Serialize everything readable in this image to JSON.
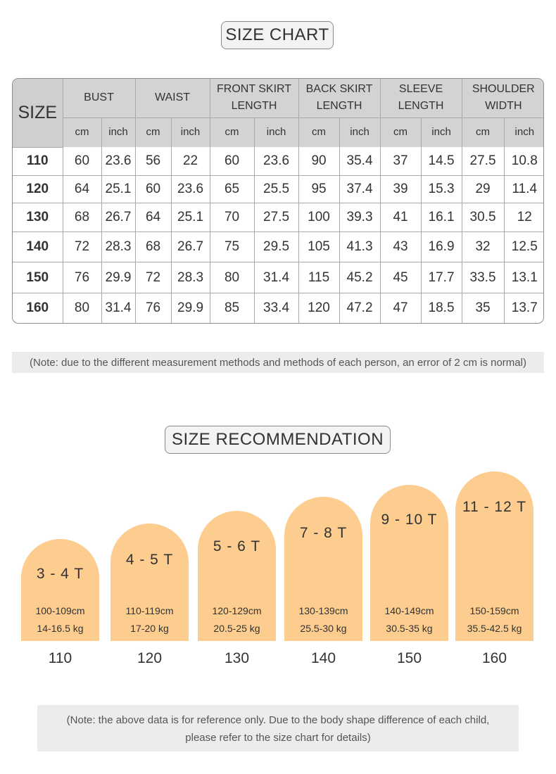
{
  "titles": {
    "chart": "SIZE CHART",
    "recommendation": "SIZE RECOMMENDATION"
  },
  "table": {
    "size_header": "SIZE",
    "columns": [
      {
        "line1": "BUST",
        "line2": ""
      },
      {
        "line1": "WAIST",
        "line2": ""
      },
      {
        "line1": "FRONT SKIRT",
        "line2": "LENGTH"
      },
      {
        "line1": "BACK SKIRT",
        "line2": "LENGTH"
      },
      {
        "line1": "SLEEVE",
        "line2": "LENGTH"
      },
      {
        "line1": "SHOULDER",
        "line2": "WIDTH"
      }
    ],
    "units": {
      "cm": "cm",
      "inch": "inch"
    },
    "rows": [
      {
        "size": "110",
        "values": [
          "60",
          "23.6",
          "56",
          "22",
          "60",
          "23.6",
          "90",
          "35.4",
          "37",
          "14.5",
          "27.5",
          "10.8"
        ]
      },
      {
        "size": "120",
        "values": [
          "64",
          "25.1",
          "60",
          "23.6",
          "65",
          "25.5",
          "95",
          "37.4",
          "39",
          "15.3",
          "29",
          "11.4"
        ]
      },
      {
        "size": "130",
        "values": [
          "68",
          "26.7",
          "64",
          "25.1",
          "70",
          "27.5",
          "100",
          "39.3",
          "41",
          "16.1",
          "30.5",
          "12"
        ]
      },
      {
        "size": "140",
        "values": [
          "72",
          "28.3",
          "68",
          "26.7",
          "75",
          "29.5",
          "105",
          "41.3",
          "43",
          "16.9",
          "32",
          "12.5"
        ]
      },
      {
        "size": "150",
        "values": [
          "76",
          "29.9",
          "72",
          "28.3",
          "80",
          "31.4",
          "115",
          "45.2",
          "45",
          "17.7",
          "33.5",
          "13.1"
        ]
      },
      {
        "size": "160",
        "values": [
          "80",
          "31.4",
          "76",
          "29.9",
          "85",
          "33.4",
          "120",
          "47.2",
          "47",
          "18.5",
          "35",
          "13.7"
        ]
      }
    ]
  },
  "note_chart": "(Note: due to the different measurement methods and methods of each person, an error of 2 cm is normal)",
  "recommendations": [
    {
      "age": "3 - 4 T",
      "height": "100-109cm",
      "weight": "14-16.5 kg",
      "size": "110"
    },
    {
      "age": "4 - 5 T",
      "height": "110-119cm",
      "weight": "17-20 kg",
      "size": "120"
    },
    {
      "age": "5 - 6 T",
      "height": "120-129cm",
      "weight": "20.5-25 kg",
      "size": "130"
    },
    {
      "age": "7 - 8 T",
      "height": "130-139cm",
      "weight": "25.5-30 kg",
      "size": "140"
    },
    {
      "age": "9 - 10 T",
      "height": "140-149cm",
      "weight": "30.5-35 kg",
      "size": "150"
    },
    {
      "age": "11 - 12 T",
      "height": "150-159cm",
      "weight": "35.5-42.5 kg",
      "size": "160"
    }
  ],
  "note_recommendation": {
    "line1": "(Note: the above data is for reference only. Due to the body shape difference of each child,",
    "line2": "please refer to the size chart for details)"
  },
  "colors": {
    "arch_fill": "#fdcc8f",
    "header_fill": "#d3d3d3",
    "note_bg": "#ececec"
  }
}
